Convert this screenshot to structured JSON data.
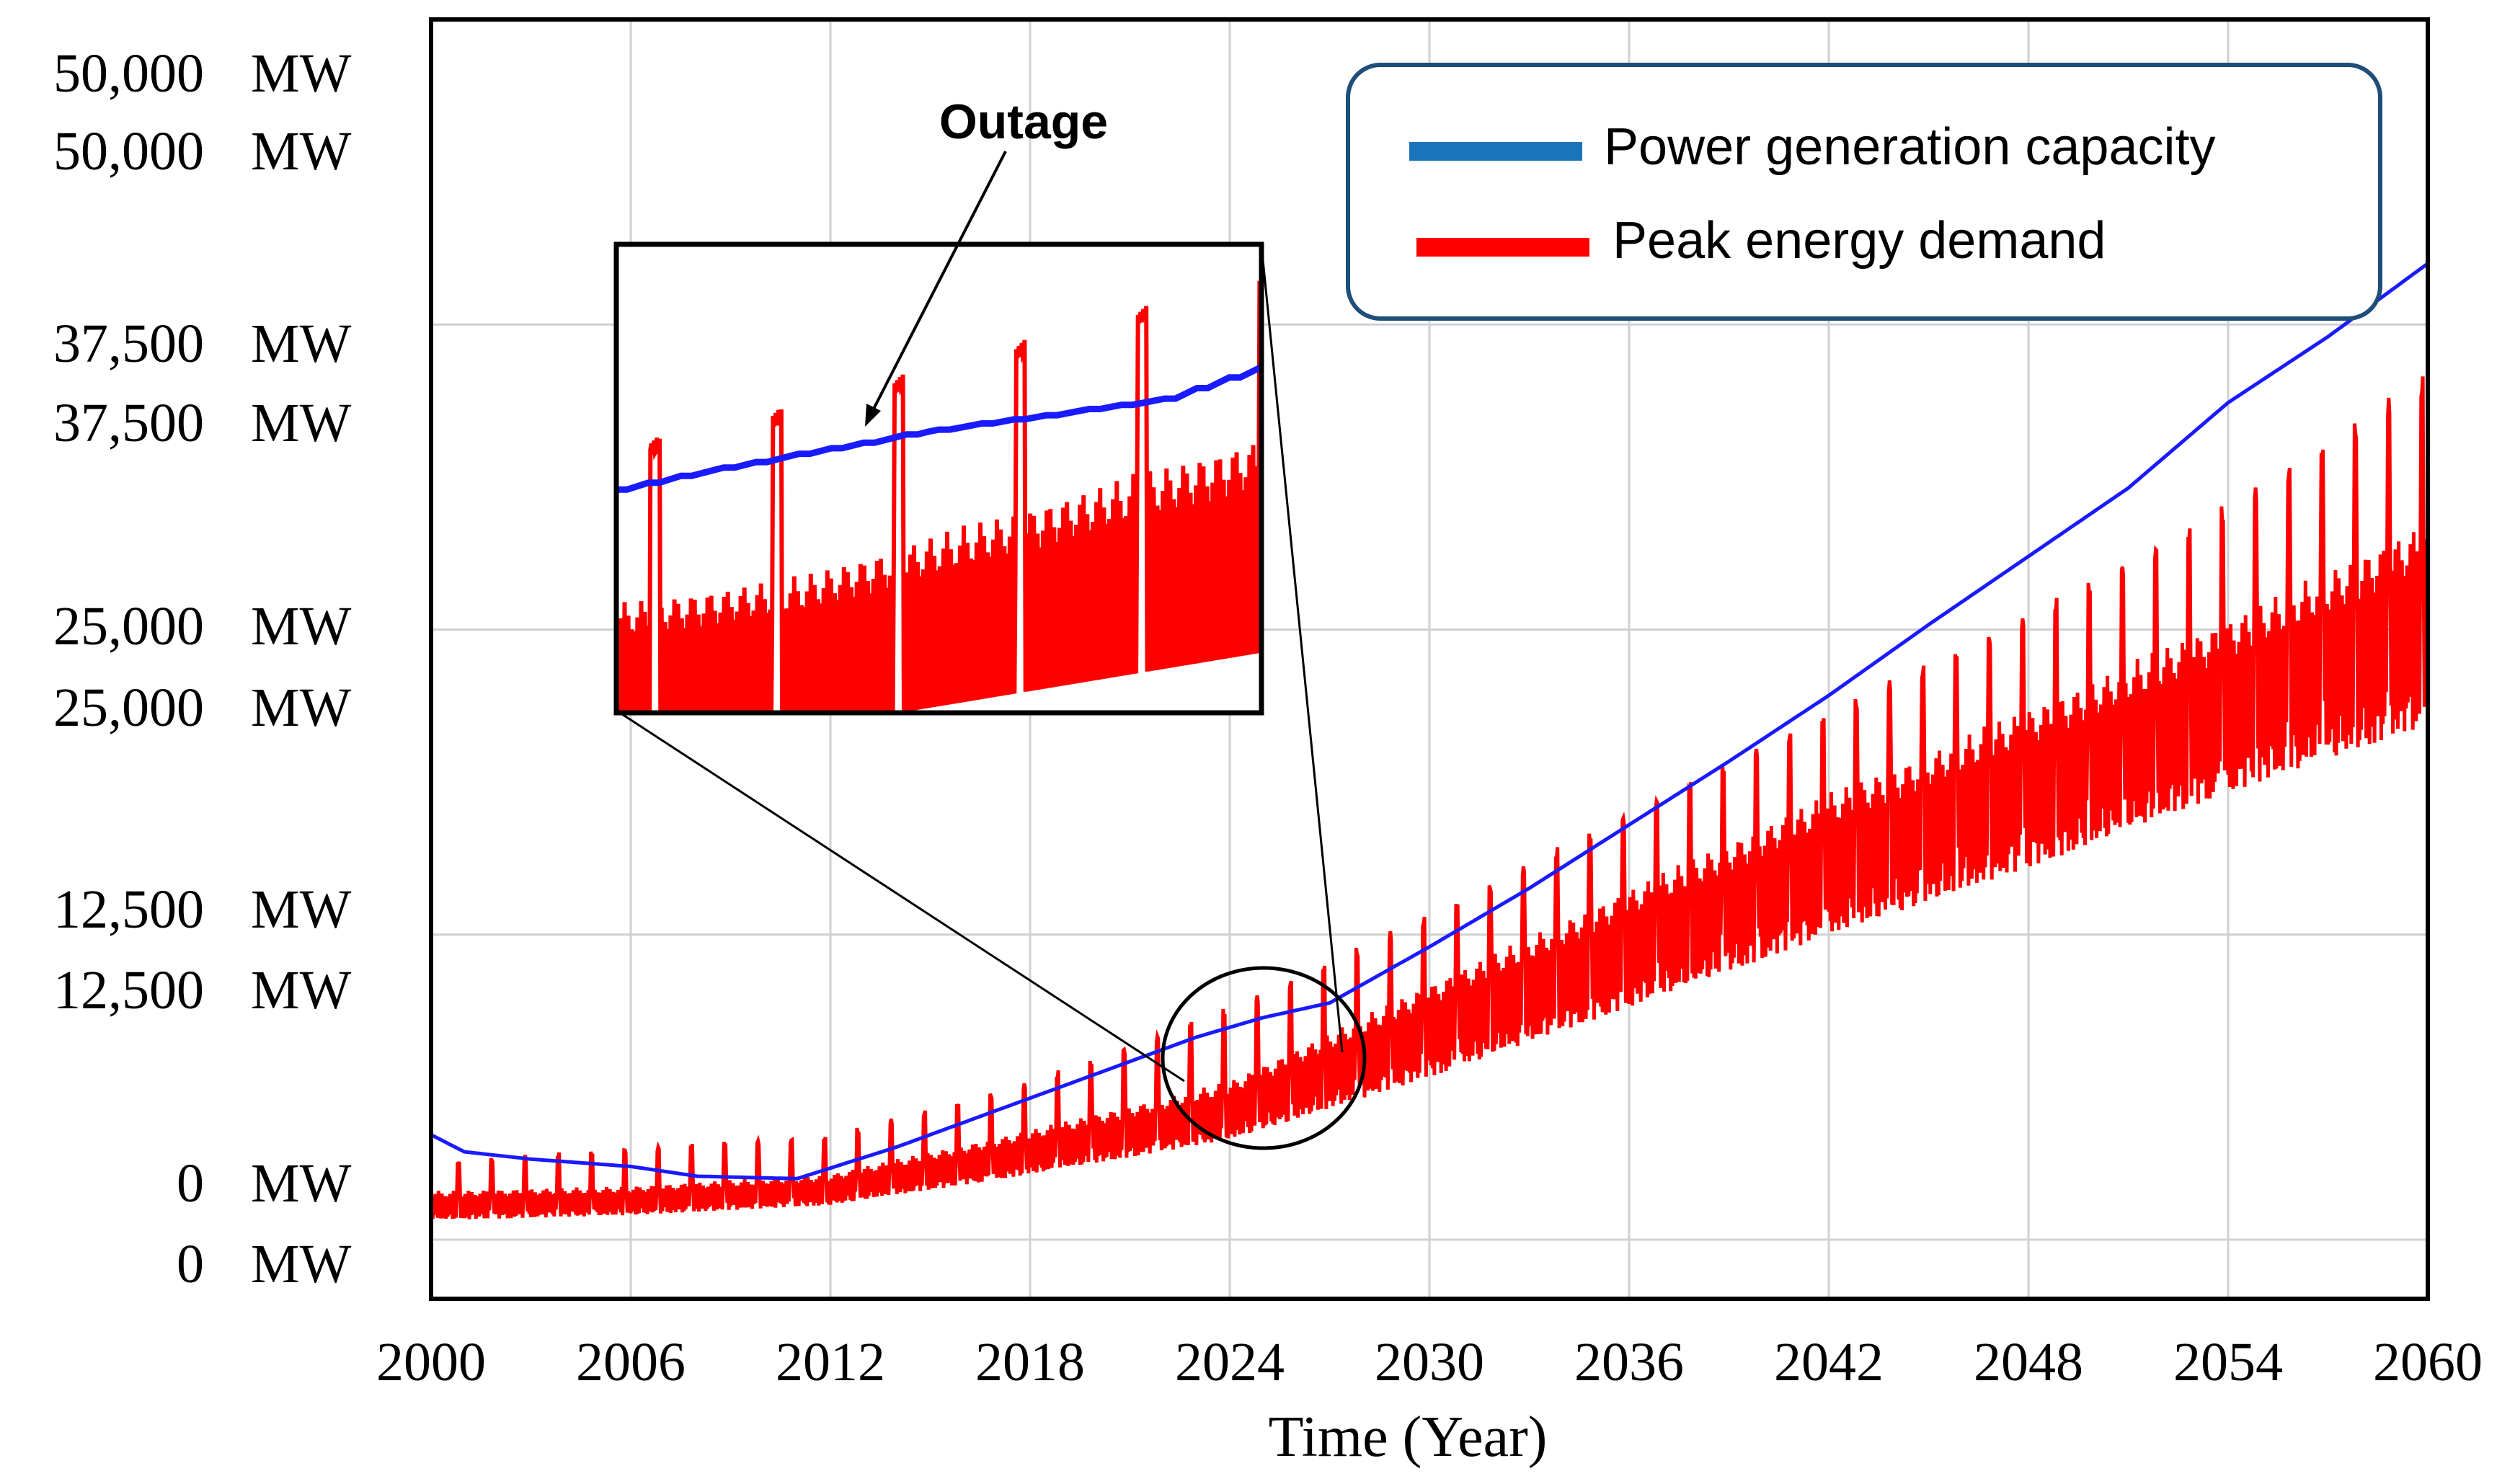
{
  "chart_data": {
    "type": "line",
    "xlabel": "Time (Year)",
    "ylabel": "",
    "x_ticks": [
      "2000",
      "2006",
      "2012",
      "2018",
      "2024",
      "2030",
      "2036",
      "2042",
      "2048",
      "2054",
      "2060"
    ],
    "xlim": [
      2000,
      2060
    ],
    "ylim": [
      0,
      50000
    ],
    "y_ticks": [
      {
        "value": 0,
        "labels": [
          "0    MW",
          "0    MW"
        ]
      },
      {
        "value": 12500,
        "labels": [
          "12,500   MW",
          "12,500   MW"
        ]
      },
      {
        "value": 25000,
        "labels": [
          "25,000   MW",
          "25,000   MW"
        ]
      },
      {
        "value": 37500,
        "labels": [
          "37,500   MW",
          "37,500   MW"
        ]
      },
      {
        "value": 50000,
        "labels": [
          "50,000   MW",
          "50,000   MW"
        ]
      }
    ],
    "grid": true,
    "legend_position": "top-right",
    "series": [
      {
        "name": "Power generation capacity",
        "color": "#1a1aff",
        "legend_color": "#1b75bb",
        "x": [
          2000,
          2001,
          2003,
          2006,
          2008,
          2011,
          2014,
          2017,
          2020,
          2023,
          2025,
          2027,
          2030,
          2033,
          2036,
          2039,
          2042,
          2045,
          2048,
          2051,
          2054,
          2057,
          2060
        ],
        "y": [
          4300,
          3600,
          3300,
          3000,
          2600,
          2500,
          3800,
          5300,
          6800,
          8300,
          9100,
          9700,
          12000,
          14400,
          17000,
          19600,
          22300,
          25200,
          28000,
          30800,
          34300,
          37000,
          40000
        ]
      },
      {
        "name": "Peak energy demand",
        "color": "#ff0000",
        "legend_color": "#ff0000",
        "x": [
          2000,
          2006,
          2012,
          2018,
          2024,
          2030,
          2036,
          2042,
          2048,
          2054,
          2060
        ],
        "y_base": [
          500,
          700,
          1100,
          2200,
          3500,
          5700,
          8300,
          11000,
          13600,
          16500,
          19000
        ],
        "y_mid": [
          2000,
          2200,
          2700,
          4500,
          6500,
          10500,
          14400,
          18300,
          21800,
          25500,
          29500
        ],
        "y_peak": [
          3200,
          3800,
          4300,
          6500,
          9600,
          13400,
          17600,
          21700,
          25700,
          30200,
          35600
        ]
      }
    ],
    "annotations": [
      {
        "text": "Outage",
        "kind": "callout"
      }
    ]
  }
}
